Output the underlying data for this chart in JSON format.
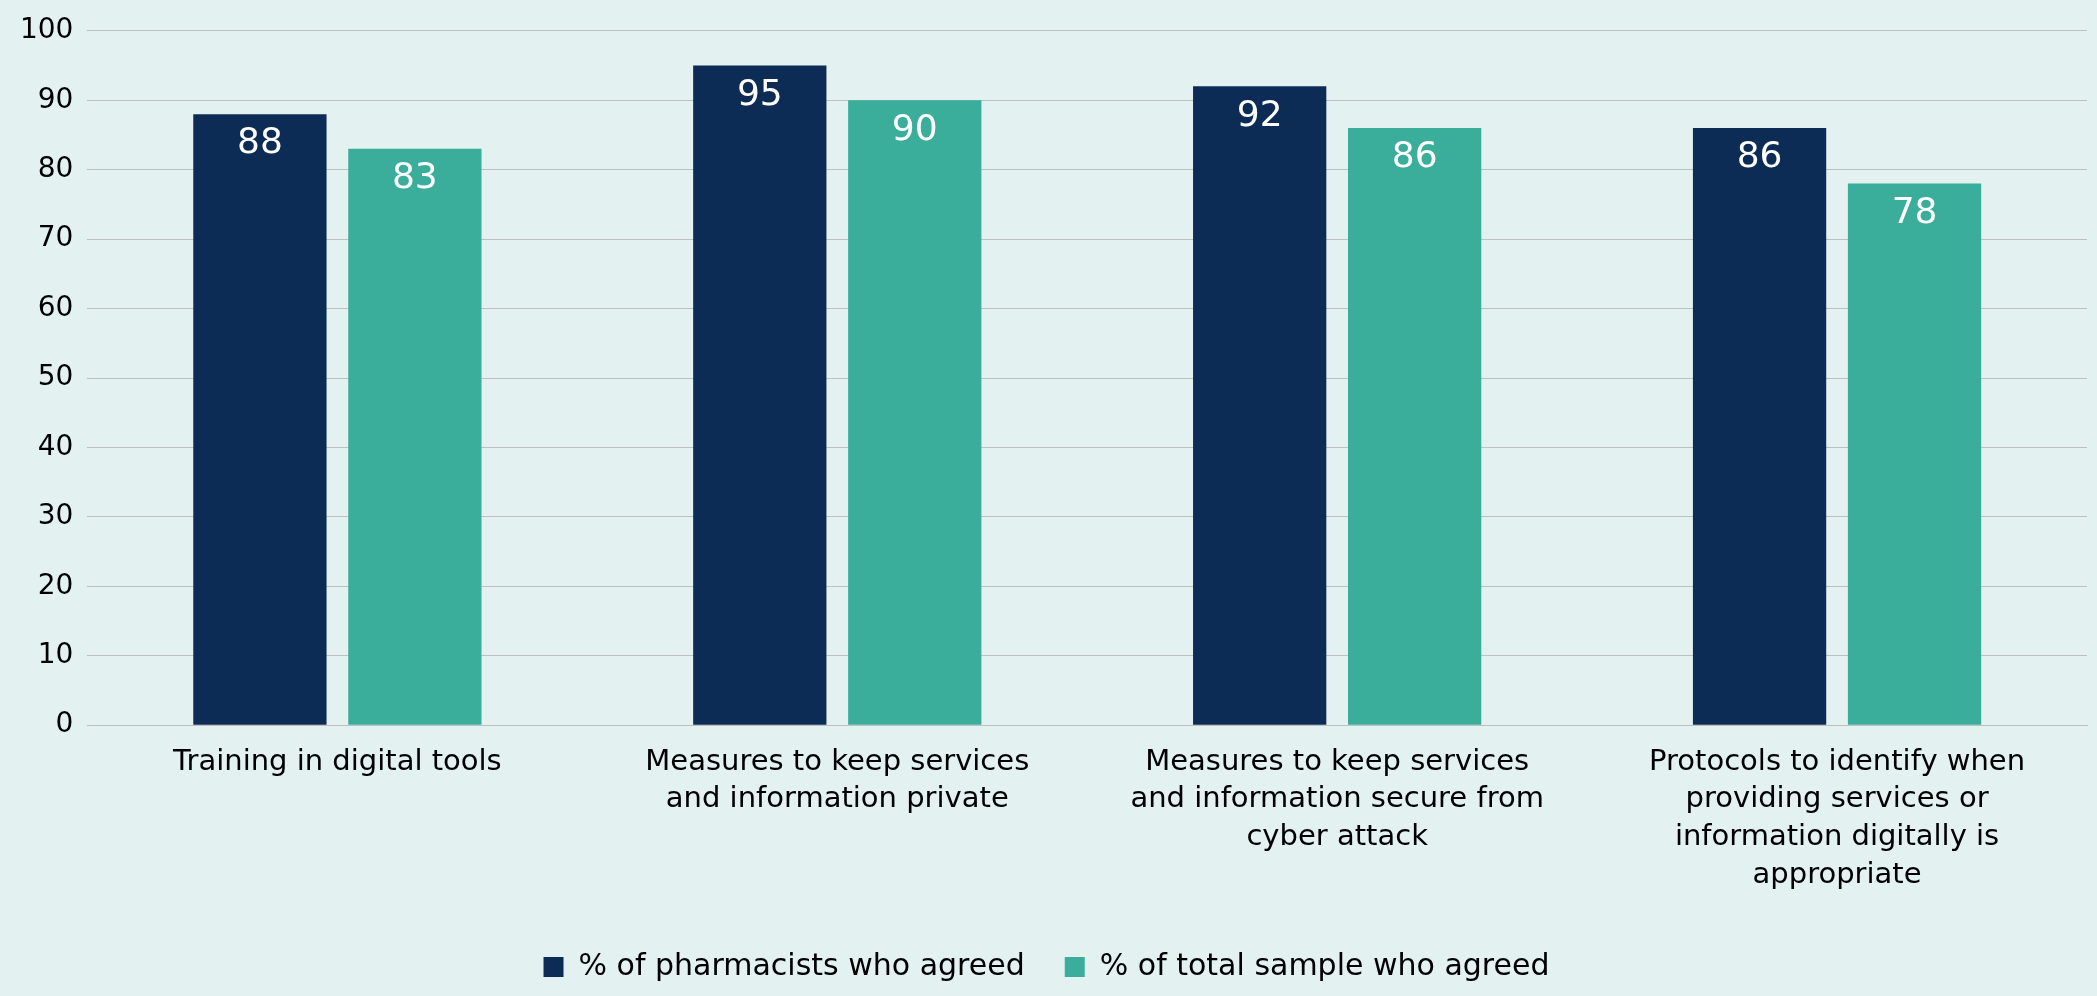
{
  "chart_data": {
    "type": "bar",
    "categories": [
      "Training in digital tools",
      "Measures to keep services and information private",
      "Measures to keep services and information secure from cyber attack",
      "Protocols to identify when providing services or information digitally is appropriate"
    ],
    "series": [
      {
        "name": "% of pharmacists who agreed",
        "color": "#0c2c55",
        "values": [
          88,
          95,
          92,
          86
        ]
      },
      {
        "name": "% of total sample who agreed",
        "color": "#3aae9a",
        "values": [
          83,
          90,
          86,
          78
        ]
      }
    ],
    "ylim": [
      0,
      100
    ],
    "yticks": [
      0,
      10,
      20,
      30,
      40,
      50,
      60,
      70,
      80,
      90,
      100
    ],
    "grid": "y",
    "legend": "bottom",
    "data_labels": true
  }
}
